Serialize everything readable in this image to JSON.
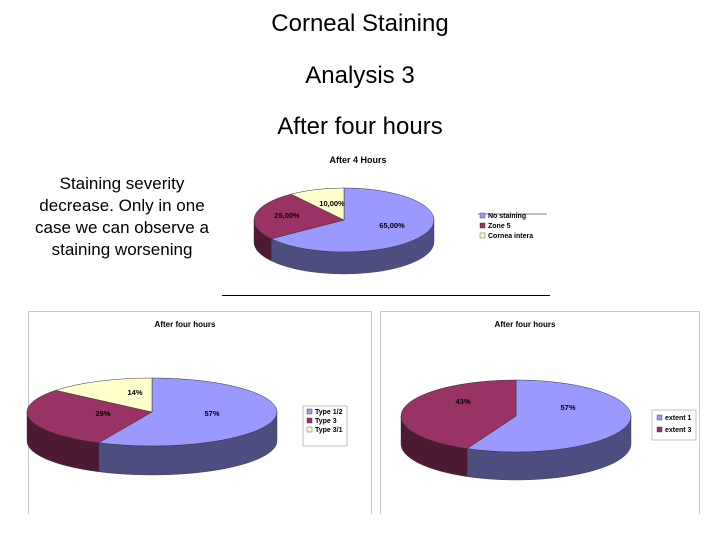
{
  "slide": {
    "title_line1": "Corneal Staining",
    "title_line2": "Analysis 3",
    "title_line3": "After four hours",
    "description_lines": [
      "Staining severity",
      "decrease. Only in one",
      "case we can observe a",
      "staining worsening"
    ]
  },
  "chart_data": [
    {
      "type": "pie",
      "title": "After 4 Hours",
      "style": "3d",
      "legend_position": "right",
      "slices": [
        {
          "name": "No staining",
          "value": 65,
          "label": "65,00%",
          "color": "#9999ff"
        },
        {
          "name": "Zone 5",
          "value": 25,
          "label": "25,00%",
          "color": "#993366"
        },
        {
          "name": "Cornea intera",
          "value": 10,
          "label": "10,00%",
          "color": "#ffffcc"
        }
      ]
    },
    {
      "type": "pie",
      "title": "After four hours",
      "style": "3d",
      "legend_position": "right",
      "slices": [
        {
          "name": "Type 1/2",
          "value": 57,
          "label": "57%",
          "color": "#9999ff"
        },
        {
          "name": "Type 3",
          "value": 29,
          "label": "29%",
          "color": "#993366"
        },
        {
          "name": "Type 3/1",
          "value": 14,
          "label": "14%",
          "color": "#ffffcc"
        }
      ]
    },
    {
      "type": "pie",
      "title": "After four hours",
      "style": "3d",
      "legend_position": "right",
      "slices": [
        {
          "name": "extent 1",
          "value": 57,
          "label": "57%",
          "color": "#9999ff"
        },
        {
          "name": "extent  3",
          "value": 43,
          "label": "43%",
          "color": "#993366"
        }
      ]
    }
  ]
}
